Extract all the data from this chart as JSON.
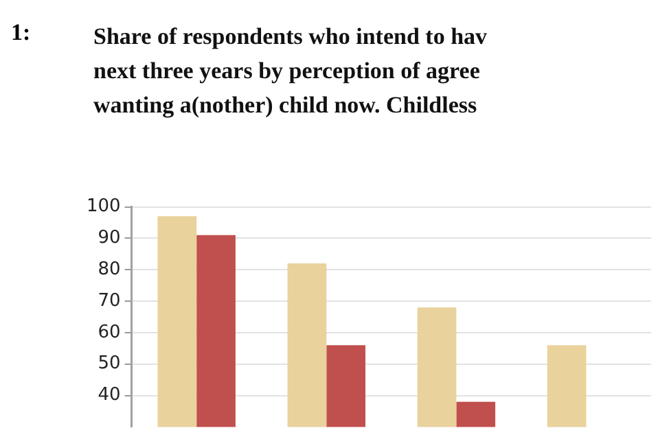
{
  "chart_data": {
    "type": "bar",
    "title": "Share of respondents who intend to hav\nnext three years by perception of agree\nwanting a(nother) child now. Childless",
    "annotations": [
      "1:"
    ],
    "categories": [
      null,
      null,
      null,
      null
    ],
    "series": [
      {
        "color": "#e9d29c",
        "values": [
          97,
          82,
          68,
          56
        ]
      },
      {
        "color": "#c0504d",
        "values": [
          91,
          56,
          38,
          null
        ]
      }
    ],
    "ylim": [
      30,
      100
    ],
    "yticks": [
      40,
      50,
      60,
      70,
      80,
      90,
      100
    ],
    "grid": "y",
    "legend": false,
    "tick_labels": "y"
  }
}
